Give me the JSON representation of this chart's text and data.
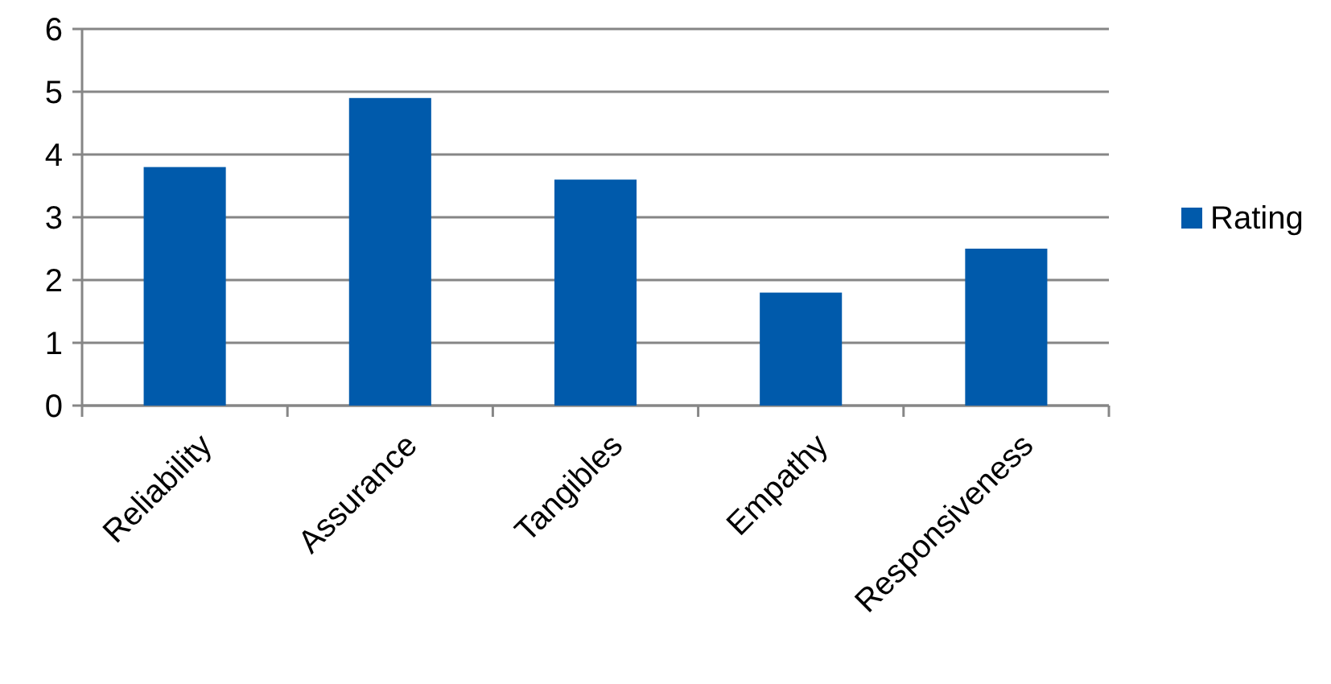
{
  "chart_data": {
    "type": "bar",
    "categories": [
      "Reliability",
      "Assurance",
      "Tangibles",
      "Empathy",
      "Responsiveness"
    ],
    "series": [
      {
        "name": "Rating",
        "color": "#005aab",
        "values": [
          3.8,
          4.9,
          3.6,
          1.8,
          2.5
        ]
      }
    ],
    "ylim": [
      0,
      6
    ],
    "yticks": [
      0,
      1,
      2,
      3,
      4,
      5,
      6
    ],
    "grid": "y",
    "legend": "right"
  }
}
